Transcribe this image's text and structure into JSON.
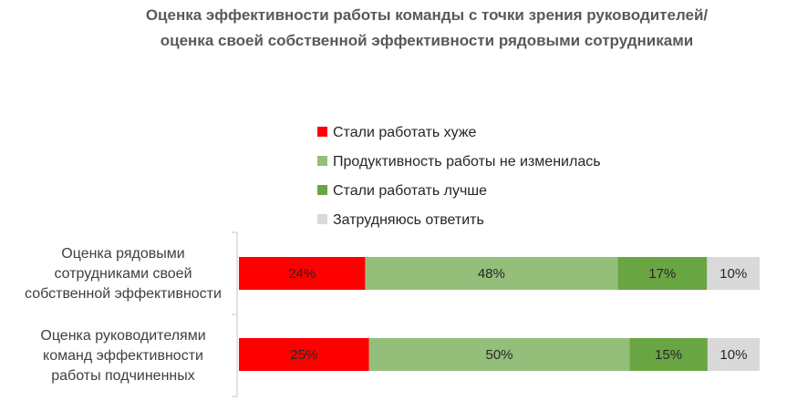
{
  "chart_data": {
    "type": "bar",
    "orientation": "horizontal",
    "stacked": true,
    "title_lines": [
      "Оценка эффективности работы команды с точки зрения руководителей/",
      "оценка своей собственной эффективности рядовыми сотрудниками"
    ],
    "categories": [
      [
        "Оценка рядовыми",
        "сотрудниками своей",
        "собственной эффективности"
      ],
      [
        "Оценка руководителями",
        "команд эффективности",
        "работы подчиненных"
      ]
    ],
    "series": [
      {
        "name": "Стали работать хуже",
        "color": "#ff0000",
        "values": [
          24,
          25
        ],
        "labels": [
          "24%",
          "25%"
        ]
      },
      {
        "name": "Продуктивность работы не изменилась",
        "color": "#93bf7b",
        "values": [
          48,
          50
        ],
        "labels": [
          "48%",
          "50%"
        ]
      },
      {
        "name": "Стали работать лучше",
        "color": "#6aa544",
        "values": [
          17,
          15
        ],
        "labels": [
          "17%",
          "15%"
        ]
      },
      {
        "name": "Затрудняюсь ответить",
        "color": "#d9d9d9",
        "values": [
          10,
          10
        ],
        "labels": [
          "10%",
          "10%"
        ]
      }
    ],
    "legend_position": "top",
    "grid": false
  }
}
